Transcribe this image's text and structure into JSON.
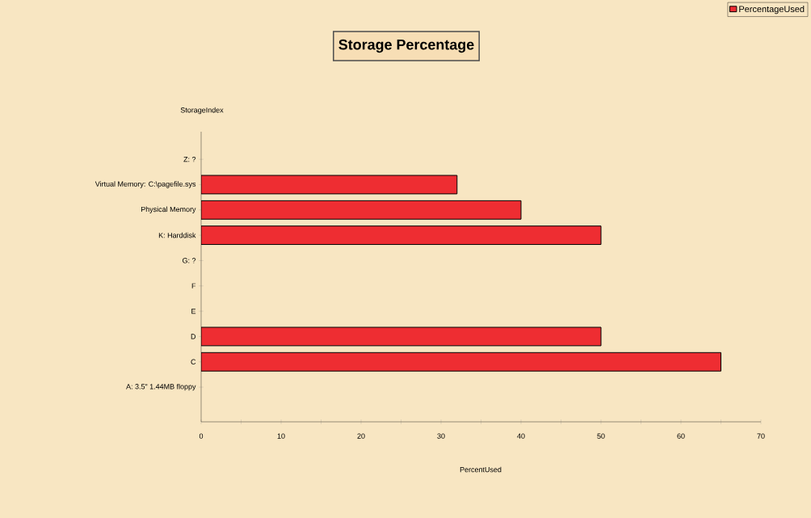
{
  "chart_data": {
    "type": "bar",
    "orientation": "horizontal",
    "title": "Storage Percentage",
    "xlabel": "PercentUsed",
    "ylabel": "StorageIndex",
    "categories": [
      "Z: ?",
      "Virtual Memory: C:\\pagefile.sys",
      "Physical Memory",
      "K: Harddisk",
      "G: ?",
      "F",
      "E",
      "D",
      "C",
      "A: 3.5\" 1.44MB floppy"
    ],
    "series": [
      {
        "name": "PercentageUsed",
        "color": "#ee2d32",
        "values": [
          null,
          32,
          40,
          50,
          null,
          null,
          null,
          50,
          65,
          null
        ]
      }
    ],
    "xlim": [
      0,
      70
    ],
    "xticks": [
      0,
      {
        "value": 5,
        "label": null
      },
      10,
      {
        "value": 15,
        "label": null
      },
      20,
      {
        "value": 25,
        "label": null
      },
      30,
      {
        "value": 35,
        "label": null
      },
      40,
      {
        "value": 45,
        "label": null
      },
      50,
      {
        "value": 55,
        "label": null
      },
      60,
      {
        "value": 65,
        "label": null
      },
      70
    ],
    "legend": "top right"
  }
}
